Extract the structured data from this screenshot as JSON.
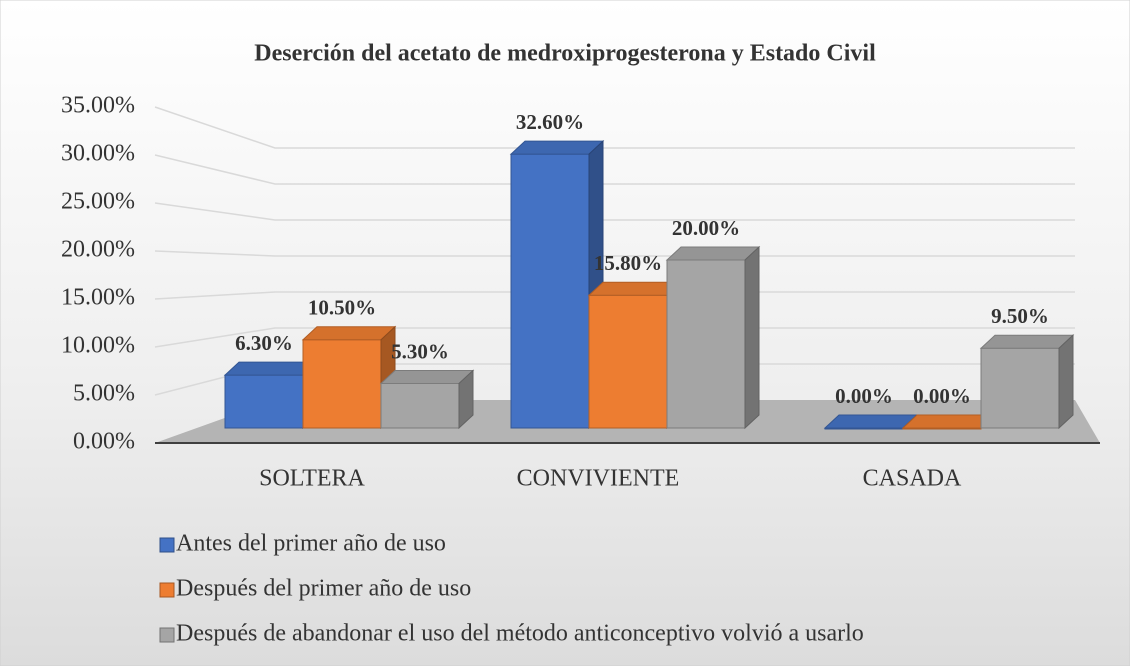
{
  "chart_data": {
    "type": "bar3d",
    "title": "Deserción del acetato de medroxiprogesterona y Estado Civil",
    "categories": [
      "SOLTERA",
      "CONVIVIENTE",
      "CASADA"
    ],
    "series": [
      {
        "name": "Antes del primer año de uso",
        "color": "#4472c4",
        "values": [
          6.3,
          32.6,
          0
        ],
        "value_labels": [
          "6.30%",
          "32.60%",
          "0.00%"
        ]
      },
      {
        "name": "Después del primer año de uso",
        "color": "#ed7d31",
        "values": [
          10.5,
          15.8,
          0
        ],
        "value_labels": [
          "10.50%",
          "15.80%",
          "0.00%"
        ]
      },
      {
        "name": "Después de abandonar el uso del método anticonceptivo volvió a usarlo",
        "color": "#a5a5a5",
        "values": [
          5.3,
          20.0,
          9.5
        ],
        "value_labels": [
          "5.30%",
          "20.00%",
          "9.50%"
        ]
      }
    ],
    "ylim": [
      0,
      35
    ],
    "yticks": [
      {
        "value": 0,
        "label": "0.00%"
      },
      {
        "value": 5,
        "label": "5.00%"
      },
      {
        "value": 10,
        "label": "10.00%"
      },
      {
        "value": 15,
        "label": "15.00%"
      },
      {
        "value": 20,
        "label": "20.00%"
      },
      {
        "value": 25,
        "label": "25.00%"
      },
      {
        "value": 30,
        "label": "30.00%"
      },
      {
        "value": 35,
        "label": "35.00%"
      }
    ],
    "grid": true,
    "legend": "bottom"
  }
}
